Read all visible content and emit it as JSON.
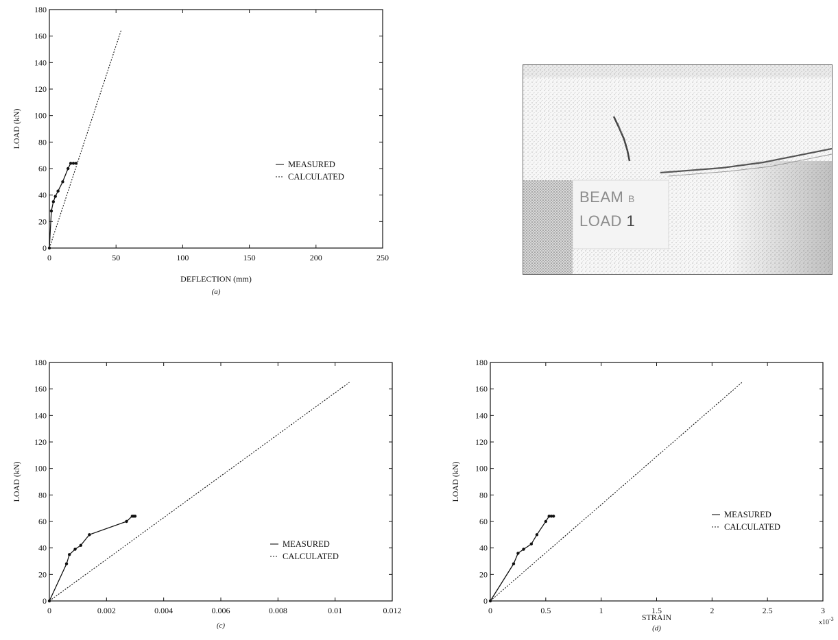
{
  "chart_data": [
    {
      "type": "line",
      "panel": "a",
      "caption": "(a)",
      "xlabel": "DEFLECTION  (mm)",
      "ylabel": "LOAD  (kN)",
      "xlim": [
        0,
        250
      ],
      "ylim": [
        0,
        180
      ],
      "xticks": [
        "0",
        "50",
        "100",
        "150",
        "200",
        "250"
      ],
      "yticks": [
        "0",
        "20",
        "40",
        "60",
        "80",
        "100",
        "120",
        "140",
        "160",
        "180"
      ],
      "legend_position": "right-center",
      "series": [
        {
          "name": "MEASURED",
          "style": "solid",
          "markers": true,
          "x": [
            0,
            1.5,
            3,
            4.5,
            6.5,
            10,
            14,
            16,
            18,
            20
          ],
          "y": [
            0,
            28,
            35,
            39,
            43,
            50,
            60,
            64,
            64,
            64
          ]
        },
        {
          "name": "CALCULATED",
          "style": "dotted",
          "markers": false,
          "x": [
            0,
            54
          ],
          "y": [
            0,
            165
          ]
        }
      ]
    },
    {
      "type": "line",
      "panel": "c",
      "caption": "(c)",
      "xlabel": "",
      "ylabel": "LOAD  (kN)",
      "xlim": [
        0,
        0.012
      ],
      "ylim": [
        0,
        180
      ],
      "xticks": [
        "0",
        "0.002",
        "0.004",
        "0.006",
        "0.008",
        "0.01",
        "0.012"
      ],
      "yticks": [
        "0",
        "20",
        "40",
        "60",
        "80",
        "100",
        "120",
        "140",
        "160",
        "180"
      ],
      "legend_position": "bottom-right",
      "series": [
        {
          "name": "MEASURED",
          "style": "solid",
          "markers": true,
          "x": [
            0,
            0.0006,
            0.0007,
            0.0009,
            0.0011,
            0.0014,
            0.0027,
            0.0029,
            0.00295,
            0.003
          ],
          "y": [
            0,
            28,
            35,
            39,
            42,
            50,
            60,
            64,
            64,
            64
          ]
        },
        {
          "name": "CALCULATED",
          "style": "dotted",
          "markers": false,
          "x": [
            0,
            0.0105
          ],
          "y": [
            0,
            165
          ]
        }
      ]
    },
    {
      "type": "line",
      "panel": "d",
      "caption": "(d)",
      "xlabel": "STRAIN",
      "x_multiplier": "x10",
      "x_exponent": "-3",
      "ylabel": "LOAD  (kN)",
      "xlim": [
        0,
        3
      ],
      "ylim": [
        0,
        180
      ],
      "xticks": [
        "0",
        "0.5",
        "1",
        "1.5",
        "2",
        "2.5",
        "3"
      ],
      "yticks": [
        "0",
        "20",
        "40",
        "60",
        "80",
        "100",
        "120",
        "140",
        "160",
        "180"
      ],
      "legend_position": "right-center",
      "series": [
        {
          "name": "MEASURED",
          "style": "solid",
          "markers": true,
          "x": [
            0,
            0.21,
            0.25,
            0.3,
            0.37,
            0.42,
            0.5,
            0.53,
            0.55,
            0.57
          ],
          "y": [
            0,
            28,
            36,
            39,
            43,
            50,
            60,
            64,
            64,
            64
          ]
        },
        {
          "name": "CALCULATED",
          "style": "dotted",
          "markers": false,
          "x": [
            0,
            2.27
          ],
          "y": [
            0,
            165
          ]
        }
      ]
    }
  ],
  "photo": {
    "label_line1": "BEAM",
    "label_line1_suffix": "B",
    "label_line2": "LOAD",
    "label_line2_suffix": "1"
  }
}
